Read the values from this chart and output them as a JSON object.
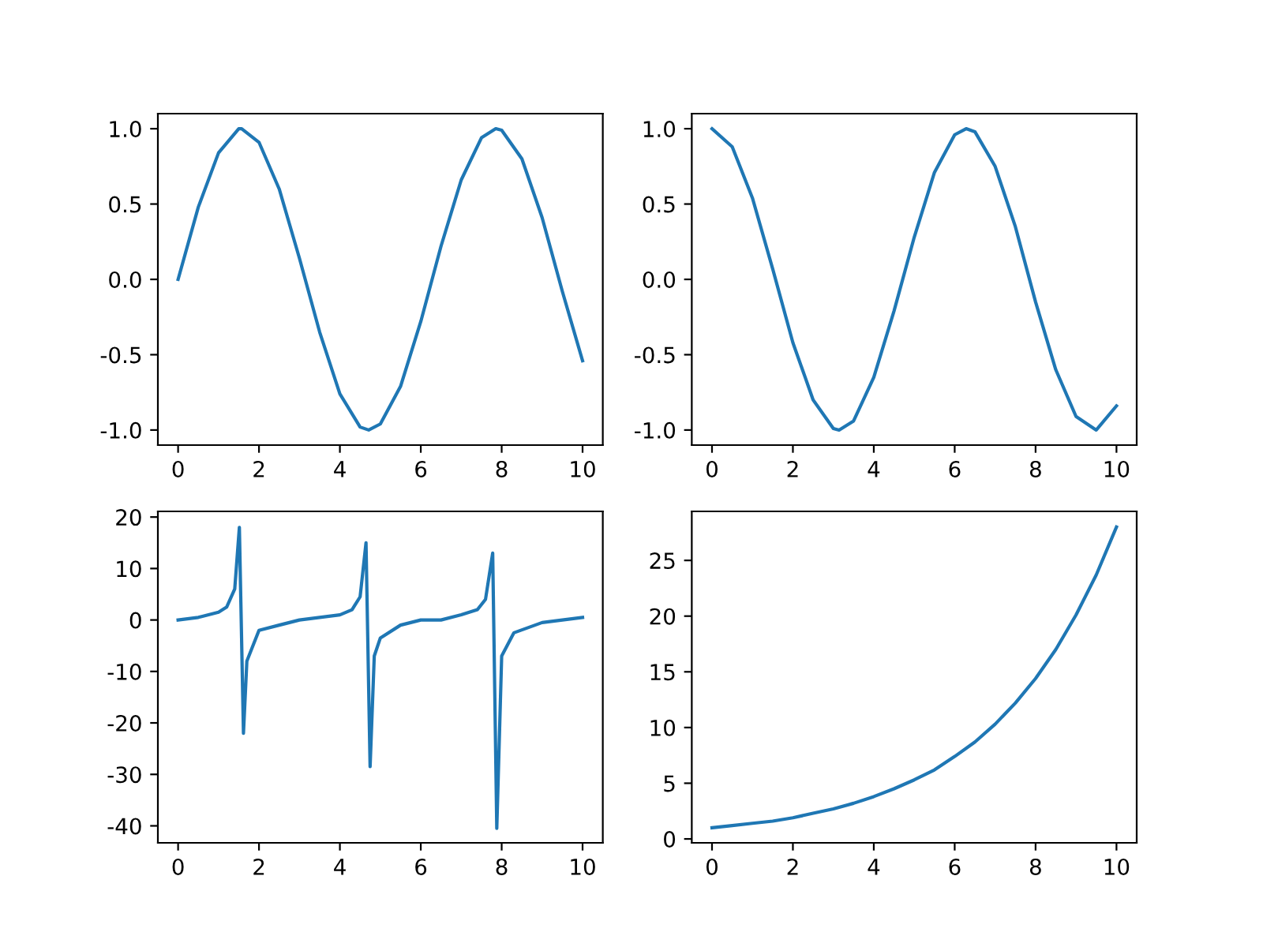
{
  "chart_data": [
    {
      "type": "line",
      "x": [
        0,
        0.5,
        1.0,
        1.5,
        1.571,
        2.0,
        2.5,
        3.0,
        3.5,
        4.0,
        4.5,
        4.712,
        5.0,
        5.5,
        6.0,
        6.5,
        7.0,
        7.5,
        7.854,
        8.0,
        8.5,
        9.0,
        9.5,
        10.0
      ],
      "series": [
        {
          "color": "#1f77b4",
          "values": [
            0.0,
            0.48,
            0.84,
            1.0,
            1.0,
            0.91,
            0.6,
            0.14,
            -0.35,
            -0.76,
            -0.98,
            -1.0,
            -0.96,
            -0.71,
            -0.28,
            0.22,
            0.66,
            0.94,
            1.0,
            0.99,
            0.8,
            0.41,
            -0.08,
            -0.54
          ]
        }
      ],
      "xlim": [
        -0.5,
        10.5
      ],
      "xticks": [
        0,
        2,
        4,
        6,
        8,
        10
      ],
      "ylim": [
        -1.1,
        1.1
      ],
      "yticks": [
        {
          "value": -1,
          "label": "-1.0"
        },
        -0.5,
        {
          "value": 0,
          "label": "0.0"
        },
        0.5,
        {
          "value": 1,
          "label": "1.0"
        }
      ],
      "grid": false,
      "legend": false
    },
    {
      "type": "line",
      "x": [
        0,
        0.5,
        1.0,
        1.5,
        2.0,
        2.5,
        3.0,
        3.142,
        3.5,
        4.0,
        4.5,
        5.0,
        5.5,
        6.0,
        6.283,
        6.5,
        7.0,
        7.5,
        8.0,
        8.5,
        9.0,
        9.5,
        10.0
      ],
      "series": [
        {
          "color": "#1f77b4",
          "values": [
            1.0,
            0.88,
            0.54,
            0.07,
            -0.42,
            -0.8,
            -0.99,
            -1.0,
            -0.94,
            -0.65,
            -0.21,
            0.28,
            0.71,
            0.96,
            1.0,
            0.98,
            0.75,
            0.35,
            -0.15,
            -0.6,
            -0.91,
            -1.0,
            -0.84
          ]
        }
      ],
      "xlim": [
        -0.5,
        10.5
      ],
      "xticks": [
        0,
        2,
        4,
        6,
        8,
        10
      ],
      "ylim": [
        -1.1,
        1.1
      ],
      "yticks": [
        {
          "value": -1,
          "label": "-1.0"
        },
        -0.5,
        {
          "value": 0,
          "label": "0.0"
        },
        0.5,
        {
          "value": 1,
          "label": "1.0"
        }
      ],
      "grid": false,
      "legend": false
    },
    {
      "type": "line",
      "x": [
        0,
        0.5,
        1.0,
        1.2,
        1.4,
        1.515,
        1.616,
        1.7,
        2.0,
        2.5,
        3.0,
        3.5,
        4.0,
        4.3,
        4.5,
        4.646,
        4.747,
        4.85,
        5.0,
        5.5,
        6.0,
        6.5,
        7.0,
        7.4,
        7.6,
        7.778,
        7.879,
        8.0,
        8.3,
        9.0,
        9.5,
        10.0
      ],
      "series": [
        {
          "color": "#1f77b4",
          "values": [
            0,
            0.5,
            1.5,
            2.5,
            6,
            18,
            -22,
            -8,
            -2,
            -1,
            0,
            0.5,
            1,
            2,
            4.5,
            15,
            -28.5,
            -7,
            -3.5,
            -1,
            0,
            0,
            1,
            2,
            4,
            13,
            -40.5,
            -7,
            -2.5,
            -0.5,
            0,
            0.5
          ]
        }
      ],
      "xlim": [
        -0.5,
        10.5
      ],
      "xticks": [
        0,
        2,
        4,
        6,
        8,
        10
      ],
      "ylim": [
        -43.3,
        21.1
      ],
      "yticks": [
        -40,
        -30,
        -20,
        -10,
        0,
        10,
        20
      ],
      "grid": false,
      "legend": false
    },
    {
      "type": "line",
      "x": [
        0,
        0.5,
        1.0,
        1.5,
        2.0,
        2.5,
        3.0,
        3.5,
        4.0,
        4.5,
        5.0,
        5.5,
        6.0,
        6.5,
        7.0,
        7.5,
        8.0,
        8.5,
        9.0,
        9.5,
        10.0
      ],
      "series": [
        {
          "color": "#1f77b4",
          "values": [
            1.0,
            1.2,
            1.4,
            1.6,
            1.9,
            2.3,
            2.7,
            3.2,
            3.8,
            4.5,
            5.3,
            6.2,
            7.4,
            8.7,
            10.3,
            12.2,
            14.4,
            17.0,
            20.1,
            23.7,
            28.0
          ]
        }
      ],
      "xlim": [
        -0.5,
        10.5
      ],
      "xticks": [
        0,
        2,
        4,
        6,
        8,
        10
      ],
      "ylim": [
        -0.35,
        29.4
      ],
      "yticks": [
        0,
        5,
        10,
        15,
        20,
        25
      ],
      "grid": false,
      "legend": false
    }
  ]
}
